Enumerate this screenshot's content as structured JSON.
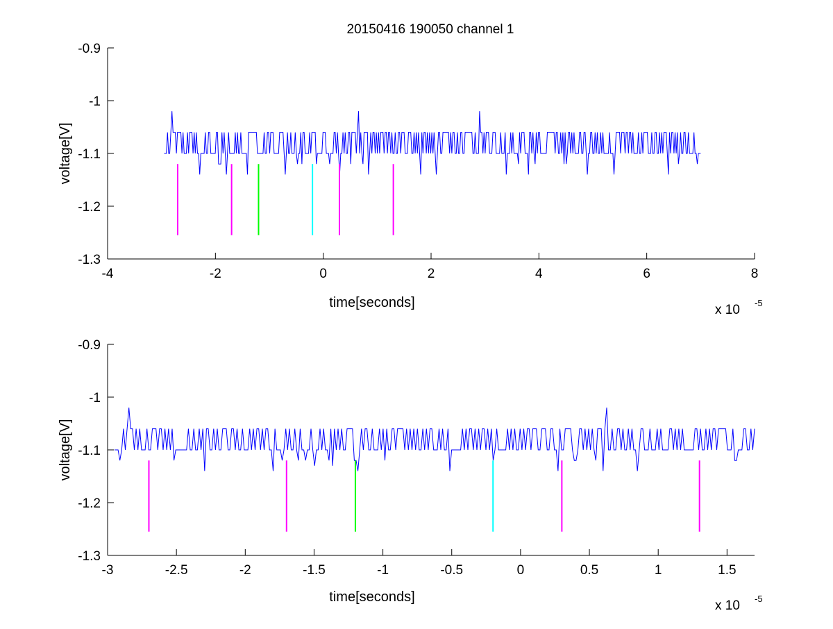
{
  "figure": {
    "title": "20150416 190050 channel 1"
  },
  "chart_data": [
    {
      "type": "line",
      "name": "full-record",
      "xlabel": "time[seconds]",
      "ylabel": "voltage[V]",
      "x_exponent_label": "x 10",
      "x_exponent": "-5",
      "xlim": [
        -4,
        8
      ],
      "ylim": [
        -1.3,
        -0.9
      ],
      "xticks": [
        -4,
        -2,
        0,
        2,
        4,
        6,
        8
      ],
      "xtick_labels": [
        "-4",
        "-2",
        "0",
        "2",
        "4",
        "6",
        "8"
      ],
      "yticks": [
        -1.3,
        -1.2,
        -1.1,
        -1.0,
        -0.9
      ],
      "ytick_labels": [
        "-1.3",
        "-1.2",
        "-1.1",
        "-1",
        "-0.9"
      ],
      "grid": false,
      "series": [
        {
          "color": "#0000ff",
          "x_range": [
            -2.95,
            7.0
          ],
          "baseline": -1.1,
          "high_level": -1.06,
          "spikes_up": [
            {
              "x": -2.8,
              "y": -1.02
            },
            {
              "x": 0.65,
              "y": -1.02
            },
            {
              "x": 2.9,
              "y": -1.02
            }
          ],
          "spikes_down": [
            {
              "x": -2.3,
              "y": -1.14
            },
            {
              "x": -1.8,
              "y": -1.14
            },
            {
              "x": -1.4,
              "y": -1.14
            },
            {
              "x": -0.7,
              "y": -1.14
            },
            {
              "x": 0.3,
              "y": -1.14
            },
            {
              "x": 0.85,
              "y": -1.14
            },
            {
              "x": 1.8,
              "y": -1.14
            },
            {
              "x": 2.1,
              "y": -1.14
            },
            {
              "x": 3.4,
              "y": -1.14
            },
            {
              "x": 3.8,
              "y": -1.14
            },
            {
              "x": 4.9,
              "y": -1.14
            },
            {
              "x": 5.4,
              "y": -1.14
            },
            {
              "x": 6.4,
              "y": -1.14
            }
          ]
        }
      ],
      "markers": [
        {
          "x": -2.7,
          "y_top": -1.12,
          "y_bottom": -1.255,
          "color": "#ff00ff"
        },
        {
          "x": -1.7,
          "y_top": -1.12,
          "y_bottom": -1.255,
          "color": "#ff00ff"
        },
        {
          "x": -1.2,
          "y_top": -1.12,
          "y_bottom": -1.255,
          "color": "#00ff00"
        },
        {
          "x": -0.2,
          "y_top": -1.12,
          "y_bottom": -1.255,
          "color": "#00ffff"
        },
        {
          "x": 0.3,
          "y_top": -1.12,
          "y_bottom": -1.255,
          "color": "#ff00ff"
        },
        {
          "x": 1.3,
          "y_top": -1.12,
          "y_bottom": -1.255,
          "color": "#ff00ff"
        }
      ]
    },
    {
      "type": "line",
      "name": "zoomed-record",
      "xlabel": "time[seconds]",
      "ylabel": "voltage[V]",
      "x_exponent_label": "x 10",
      "x_exponent": "-5",
      "xlim": [
        -3.0,
        1.7
      ],
      "ylim": [
        -1.3,
        -0.9
      ],
      "xticks": [
        -3,
        -2.5,
        -2,
        -1.5,
        -1,
        -0.5,
        0,
        0.5,
        1,
        1.5
      ],
      "xtick_labels": [
        "-3",
        "-2.5",
        "-2",
        "-1.5",
        "-1",
        "-0.5",
        "0",
        "0.5",
        "1",
        "1.5"
      ],
      "yticks": [
        -1.3,
        -1.2,
        -1.1,
        -1.0,
        -0.9
      ],
      "ytick_labels": [
        "-1.3",
        "-1.2",
        "-1.1",
        "-1",
        "-0.9"
      ],
      "grid": false,
      "series": [
        {
          "color": "#0000ff",
          "x_range": [
            -2.95,
            1.7
          ],
          "baseline": -1.1,
          "high_level": -1.06,
          "spikes_up": [
            {
              "x": -2.85,
              "y": -1.02
            },
            {
              "x": 0.63,
              "y": -1.02
            }
          ],
          "spikes_down": [
            {
              "x": -2.3,
              "y": -1.14
            },
            {
              "x": -1.8,
              "y": -1.14
            },
            {
              "x": -1.5,
              "y": -1.13
            },
            {
              "x": -1.37,
              "y": -1.13
            },
            {
              "x": -1.18,
              "y": -1.14
            },
            {
              "x": -0.52,
              "y": -1.14
            },
            {
              "x": -0.2,
              "y": -1.12
            },
            {
              "x": 0.27,
              "y": -1.14
            },
            {
              "x": 0.6,
              "y": -1.14
            },
            {
              "x": 0.85,
              "y": -1.14
            }
          ]
        }
      ],
      "markers": [
        {
          "x": -2.7,
          "y_top": -1.12,
          "y_bottom": -1.255,
          "color": "#ff00ff"
        },
        {
          "x": -1.7,
          "y_top": -1.12,
          "y_bottom": -1.255,
          "color": "#ff00ff"
        },
        {
          "x": -1.2,
          "y_top": -1.12,
          "y_bottom": -1.255,
          "color": "#00ff00"
        },
        {
          "x": -0.2,
          "y_top": -1.12,
          "y_bottom": -1.255,
          "color": "#00ffff"
        },
        {
          "x": 0.3,
          "y_top": -1.12,
          "y_bottom": -1.255,
          "color": "#ff00ff"
        },
        {
          "x": 1.3,
          "y_top": -1.12,
          "y_bottom": -1.255,
          "color": "#ff00ff"
        }
      ]
    }
  ]
}
